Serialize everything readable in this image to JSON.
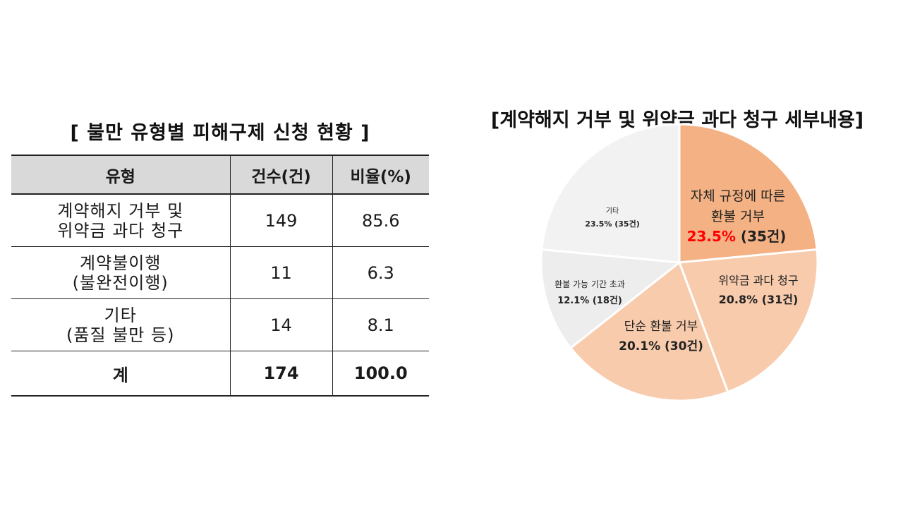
{
  "table": {
    "title": "[ 불만 유형별 피해구제 신청 현황 ]",
    "headers": [
      "유형",
      "건수(건)",
      "비율(%)"
    ],
    "rows": [
      {
        "type_line1": "계약해지 거부 및",
        "type_line2": "위약금 과다 청구",
        "count": "149",
        "ratio": "85.6"
      },
      {
        "type_line1": "계약불이행",
        "type_line2": "(불완전이행)",
        "count": "11",
        "ratio": "6.3"
      },
      {
        "type_line1": "기타",
        "type_line2": "(품질 불만 등)",
        "count": "14",
        "ratio": "8.1"
      }
    ],
    "total": {
      "label": "계",
      "count": "174",
      "ratio": "100.0"
    }
  },
  "chart_data": {
    "type": "pie",
    "title": "[계약해지 거부 및 위약금 과다 청구 세부내용]",
    "slices": [
      {
        "name": "자체 규정에 따른 환불 거부",
        "name_lines": [
          "자체 규정에 따른",
          "환불 거부"
        ],
        "percent": 23.5,
        "count": 35,
        "pct_label": "23.5%",
        "count_label": "(35건)",
        "value_label": "23.5% (35건)",
        "color": "#f4b183",
        "highlight_color": "#ff0000"
      },
      {
        "name": "위약금 과다 청구",
        "name_lines": [
          "위약금 과다 청구"
        ],
        "percent": 20.8,
        "count": 31,
        "value_label": "20.8% (31건)",
        "color": "#f8cbad"
      },
      {
        "name": "단순 환불 거부",
        "name_lines": [
          "단순 환불 거부"
        ],
        "percent": 20.1,
        "count": 30,
        "value_label": "20.1% (30건)",
        "color": "#f8cbad"
      },
      {
        "name": "환불 가능 기간 초과",
        "name_lines": [
          "환불 가능 기간 초과"
        ],
        "percent": 12.1,
        "count": 18,
        "value_label": "12.1% (18건)",
        "color": "#ededed"
      },
      {
        "name": "기타",
        "name_lines": [
          "기타"
        ],
        "percent": 23.5,
        "count": 35,
        "value_label": "23.5% (35건)",
        "color": "#f2f2f2"
      }
    ]
  }
}
